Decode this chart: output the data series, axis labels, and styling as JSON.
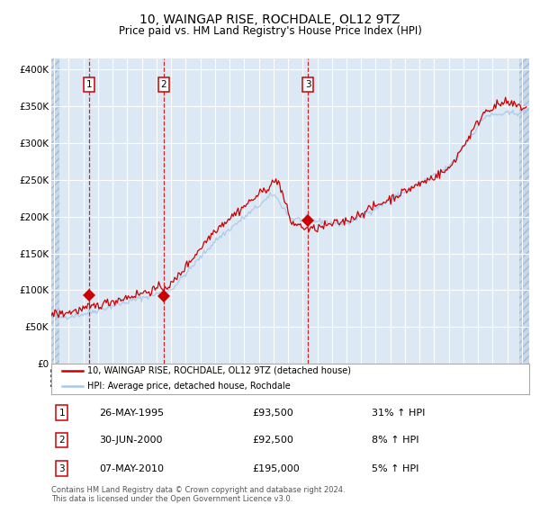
{
  "title": "10, WAINGAP RISE, ROCHDALE, OL12 9TZ",
  "subtitle": "Price paid vs. HM Land Registry's House Price Index (HPI)",
  "ylabel_ticks": [
    "£0",
    "£50K",
    "£100K",
    "£150K",
    "£200K",
    "£250K",
    "£300K",
    "£350K",
    "£400K"
  ],
  "ylabel_values": [
    0,
    50000,
    100000,
    150000,
    200000,
    250000,
    300000,
    350000,
    400000
  ],
  "ylim": [
    0,
    415000
  ],
  "xlim_start": 1992.8,
  "xlim_end": 2025.5,
  "fig_bg_color": "#ffffff",
  "plot_bg_color": "#dce9f5",
  "grid_color": "#ffffff",
  "red_line_color": "#cc0000",
  "blue_line_color": "#a8c8e8",
  "vline_color": "#cc0000",
  "sale_marker_color": "#cc0000",
  "sale_marker_size": 7,
  "legend_label_red": "10, WAINGAP RISE, ROCHDALE, OL12 9TZ (detached house)",
  "legend_label_blue": "HPI: Average price, detached house, Rochdale",
  "sales": [
    {
      "num": 1,
      "date_year": 1995.38,
      "price": 93500,
      "label": "26-MAY-1995",
      "price_str": "£93,500",
      "hpi_str": "31% ↑ HPI"
    },
    {
      "num": 2,
      "date_year": 2000.49,
      "price": 92500,
      "label": "30-JUN-2000",
      "price_str": "£92,500",
      "hpi_str": "8% ↑ HPI"
    },
    {
      "num": 3,
      "date_year": 2010.35,
      "price": 195000,
      "label": "07-MAY-2010",
      "price_str": "£195,000",
      "hpi_str": "5% ↑ HPI"
    }
  ],
  "footnote": "Contains HM Land Registry data © Crown copyright and database right 2024.\nThis data is licensed under the Open Government Licence v3.0."
}
